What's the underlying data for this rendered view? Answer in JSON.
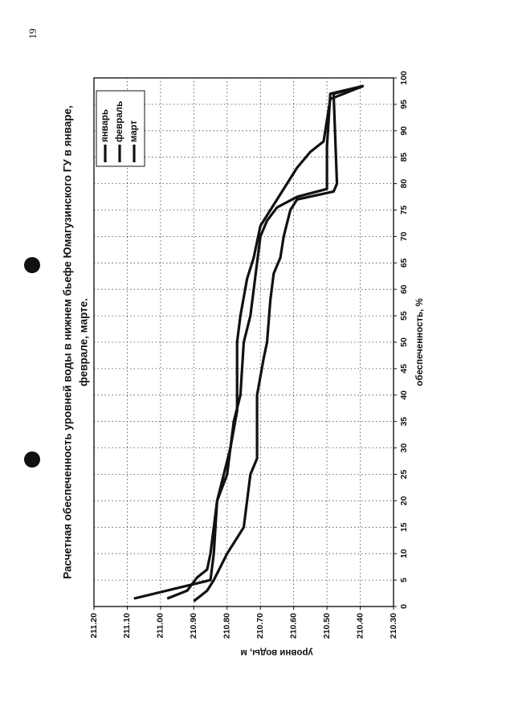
{
  "page_number": "19",
  "chart_data": {
    "type": "line",
    "title": [
      "Расчетная обеспеченность уровней воды в нижнем бьефе Юмагузинского ГУ в январе,",
      "феврале, марте."
    ],
    "x_label": "обеспеченность, %",
    "y_label": "уровни воды, м",
    "xlim": [
      0,
      100
    ],
    "xticks": [
      0,
      5,
      10,
      15,
      20,
      25,
      30,
      35,
      40,
      45,
      50,
      55,
      60,
      65,
      70,
      75,
      80,
      85,
      90,
      95,
      100
    ],
    "ylim": [
      210.3,
      211.2
    ],
    "yticks": [
      {
        "value": 210.3,
        "label": "210.30"
      },
      {
        "value": 210.4,
        "label": "210.40"
      },
      {
        "value": 210.5,
        "label": "210.50"
      },
      {
        "value": 210.6,
        "label": "210.60"
      },
      {
        "value": 210.7,
        "label": "210.70"
      },
      {
        "value": 210.8,
        "label": "210.80"
      },
      {
        "value": 210.9,
        "label": "210.90"
      },
      {
        "value": 211.0,
        "label": "211.00"
      },
      {
        "value": 211.1,
        "label": "211.10"
      },
      {
        "value": 211.2,
        "label": "211.20"
      }
    ],
    "grid": true,
    "legend": "top-right",
    "series": [
      {
        "name": "январь",
        "color": "#111111",
        "x": [
          1.5,
          5,
          10,
          20,
          30,
          37,
          50,
          55,
          62,
          66,
          72,
          77,
          80,
          83,
          86,
          88,
          96,
          98.5
        ],
        "values": [
          211.08,
          210.85,
          210.84,
          210.83,
          210.79,
          210.77,
          210.77,
          210.76,
          210.74,
          210.72,
          210.7,
          210.65,
          210.62,
          210.59,
          210.55,
          210.51,
          210.49,
          210.39
        ]
      },
      {
        "name": "февраль",
        "color": "#111111",
        "x": [
          1.5,
          3,
          5.5,
          7,
          10,
          15,
          20,
          25,
          30,
          35,
          40,
          50,
          55,
          60,
          65,
          70,
          73,
          75.5,
          77.5,
          79,
          87,
          97,
          98.5
        ],
        "values": [
          210.98,
          210.92,
          210.89,
          210.86,
          210.85,
          210.84,
          210.83,
          210.8,
          210.79,
          210.78,
          210.76,
          210.75,
          210.73,
          210.72,
          210.71,
          210.7,
          210.68,
          210.65,
          210.59,
          210.5,
          210.5,
          210.49,
          210.39
        ]
      },
      {
        "name": "март",
        "color": "#111111",
        "x": [
          1,
          3,
          5,
          10,
          13,
          15,
          20,
          25,
          28,
          40,
          47,
          50,
          58,
          63,
          66,
          70,
          75,
          77,
          78.5,
          80,
          97,
          98.5
        ],
        "values": [
          210.9,
          210.86,
          210.84,
          210.8,
          210.77,
          210.75,
          210.74,
          210.73,
          210.71,
          210.71,
          210.69,
          210.68,
          210.67,
          210.66,
          210.64,
          210.63,
          210.61,
          210.59,
          210.48,
          210.47,
          210.48,
          210.39
        ]
      }
    ]
  }
}
